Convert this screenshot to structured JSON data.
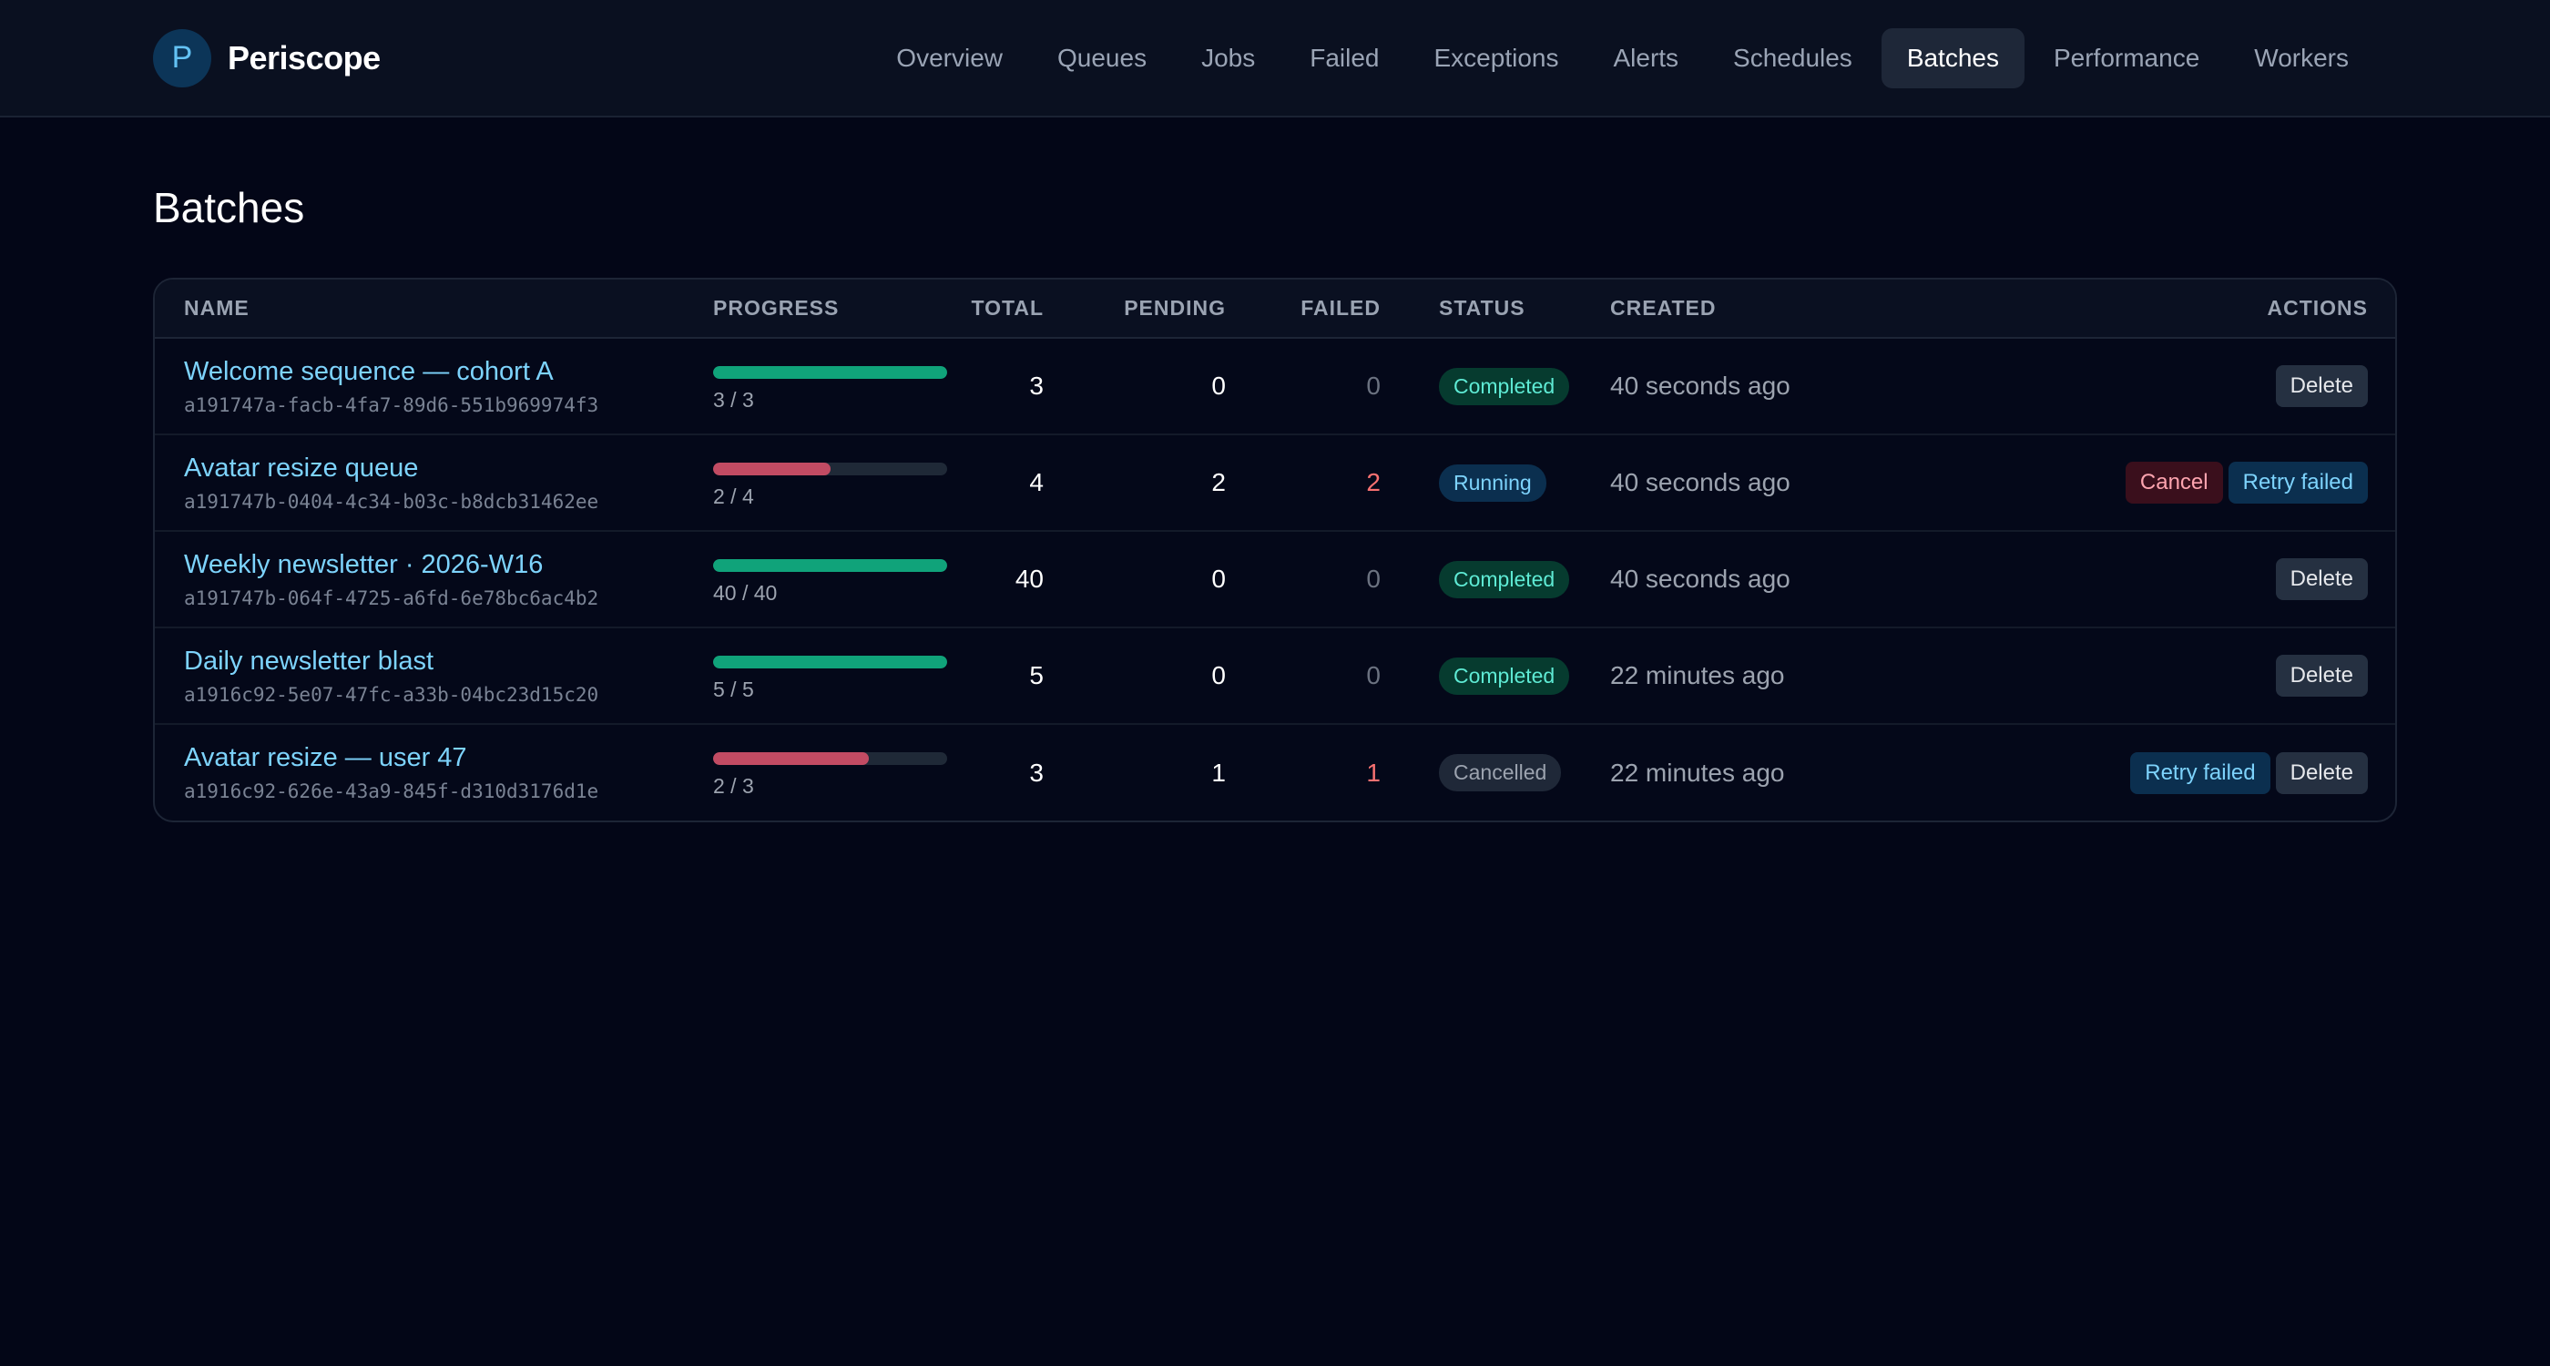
{
  "brand": {
    "logo_letter": "P",
    "name": "Periscope"
  },
  "nav": {
    "items": [
      {
        "label": "Overview",
        "active": false
      },
      {
        "label": "Queues",
        "active": false
      },
      {
        "label": "Jobs",
        "active": false
      },
      {
        "label": "Failed",
        "active": false
      },
      {
        "label": "Exceptions",
        "active": false
      },
      {
        "label": "Alerts",
        "active": false
      },
      {
        "label": "Schedules",
        "active": false
      },
      {
        "label": "Batches",
        "active": true
      },
      {
        "label": "Performance",
        "active": false
      },
      {
        "label": "Workers",
        "active": false
      }
    ]
  },
  "page": {
    "title": "Batches"
  },
  "table": {
    "headers": {
      "name": "NAME",
      "progress": "PROGRESS",
      "total": "TOTAL",
      "pending": "PENDING",
      "failed": "FAILED",
      "status": "STATUS",
      "created": "CREATED",
      "actions": "ACTIONS"
    },
    "rows": [
      {
        "name": "Welcome sequence — cohort A",
        "id": "a191747a-facb-4fa7-89d6-551b969974f3",
        "progress_text": "3 / 3",
        "progress_fraction": 1.0,
        "bar_color": "green",
        "total": "3",
        "pending": "0",
        "failed": "0",
        "status": "Completed",
        "status_kind": "completed",
        "created": "40 seconds ago",
        "actions": [
          {
            "label": "Delete",
            "kind": "delete"
          }
        ]
      },
      {
        "name": "Avatar resize queue",
        "id": "a191747b-0404-4c34-b03c-b8dcb31462ee",
        "progress_text": "2 / 4",
        "progress_fraction": 0.5,
        "bar_color": "red",
        "total": "4",
        "pending": "2",
        "failed": "2",
        "status": "Running",
        "status_kind": "running",
        "created": "40 seconds ago",
        "actions": [
          {
            "label": "Cancel",
            "kind": "cancel"
          },
          {
            "label": "Retry failed",
            "kind": "retry"
          }
        ]
      },
      {
        "name": "Weekly newsletter · 2026-W16",
        "id": "a191747b-064f-4725-a6fd-6e78bc6ac4b2",
        "progress_text": "40 / 40",
        "progress_fraction": 1.0,
        "bar_color": "green",
        "total": "40",
        "pending": "0",
        "failed": "0",
        "status": "Completed",
        "status_kind": "completed",
        "created": "40 seconds ago",
        "actions": [
          {
            "label": "Delete",
            "kind": "delete"
          }
        ]
      },
      {
        "name": "Daily newsletter blast",
        "id": "a1916c92-5e07-47fc-a33b-04bc23d15c20",
        "progress_text": "5 / 5",
        "progress_fraction": 1.0,
        "bar_color": "green",
        "total": "5",
        "pending": "0",
        "failed": "0",
        "status": "Completed",
        "status_kind": "completed",
        "created": "22 minutes ago",
        "actions": [
          {
            "label": "Delete",
            "kind": "delete"
          }
        ]
      },
      {
        "name": "Avatar resize — user 47",
        "id": "a1916c92-626e-43a9-845f-d310d3176d1e",
        "progress_text": "2 / 3",
        "progress_fraction": 0.667,
        "bar_color": "red",
        "total": "3",
        "pending": "1",
        "failed": "1",
        "status": "Cancelled",
        "status_kind": "cancelled",
        "created": "22 minutes ago",
        "actions": [
          {
            "label": "Retry failed",
            "kind": "retry"
          },
          {
            "label": "Delete",
            "kind": "delete"
          }
        ]
      }
    ]
  }
}
